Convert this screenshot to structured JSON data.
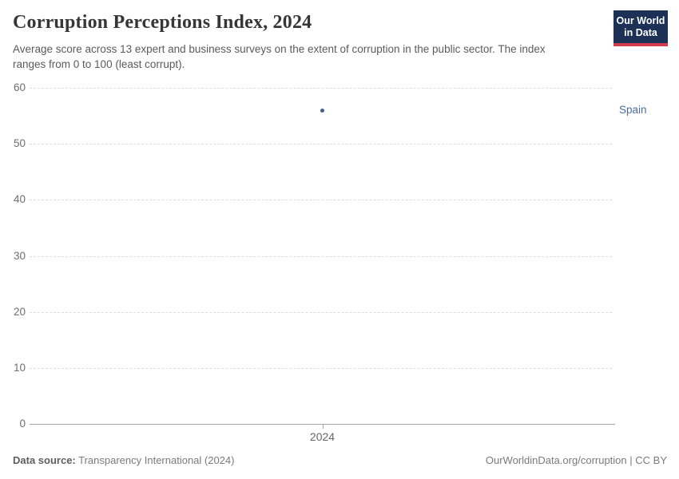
{
  "header": {
    "title": "Corruption Perceptions Index, 2024",
    "subtitle": "Average score across 13 expert and business surveys on the extent of corruption in the public sector. The index ranges from 0 to 100 (least corrupt).",
    "logo": {
      "line1": "Our World",
      "line2": "in Data",
      "bg_color": "#1d3156",
      "stripe_color": "#d13b4b"
    }
  },
  "chart_data": {
    "type": "scatter",
    "title": "Corruption Perceptions Index, 2024",
    "xlabel": "",
    "ylabel": "",
    "x": [
      2024
    ],
    "series": [
      {
        "name": "Spain",
        "x": [
          2024
        ],
        "y": [
          56
        ],
        "point_color": "#3f5e92",
        "label_color": "#4c6a9c"
      }
    ],
    "xticks": [
      2024
    ],
    "yticks": [
      0,
      10,
      20,
      30,
      40,
      50,
      60
    ],
    "ylim": [
      0,
      60
    ],
    "grid": "horizontal-dashed",
    "grid_color": "#dddddd",
    "axis_color": "#a3a3a3",
    "tick_label_color": "#6e6e6e",
    "legend_position": "right-of-point"
  },
  "footer": {
    "source_label": "Data source:",
    "source_value": "Transparency International (2024)",
    "url": "OurWorldinData.org/corruption",
    "separator": " | ",
    "license": "CC BY"
  }
}
